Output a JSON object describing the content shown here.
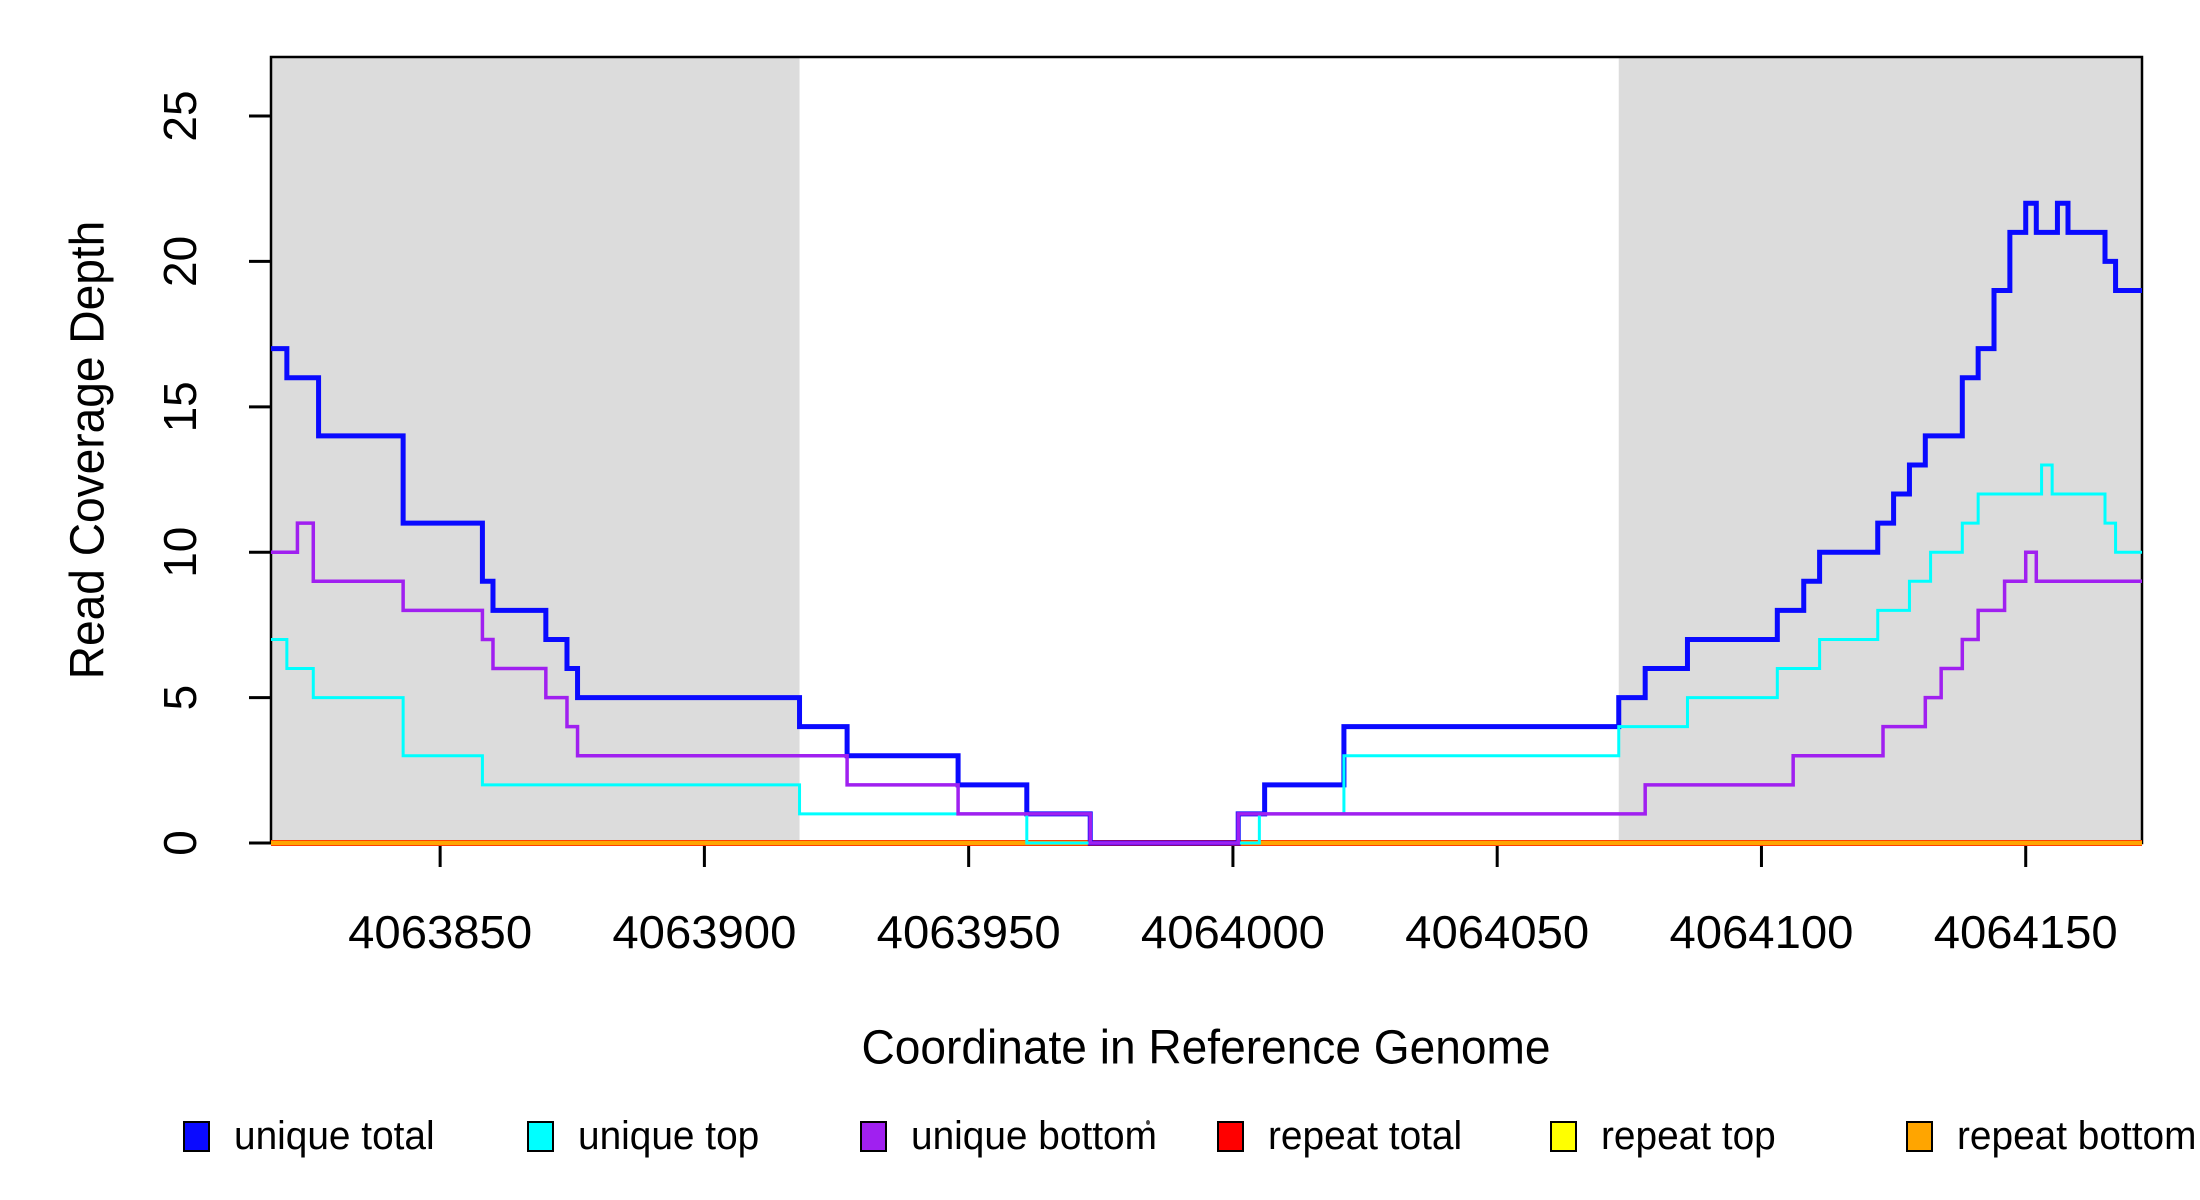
{
  "chart_data": {
    "type": "line",
    "subtype": "step",
    "title": "",
    "xlabel": "Coordinate in Reference Genome",
    "ylabel": "Read Coverage Depth",
    "xlim": [
      4063818,
      4064172
    ],
    "ylim": [
      0,
      27.03
    ],
    "x_ticks": [
      4063850,
      4063900,
      4063950,
      4064000,
      4064050,
      4064100,
      4064150
    ],
    "y_ticks": [
      0,
      5,
      10,
      15,
      20,
      25
    ],
    "grid": false,
    "background_color": "#ffffff",
    "plot_border_color": "#000000",
    "shade_color": "#DCDCDC",
    "shaded_regions": [
      {
        "from": 4063818,
        "to": 4063918
      },
      {
        "from": 4064073,
        "to": 4064172
      }
    ],
    "legend_position": "bottom",
    "legend": [
      {
        "label": "unique total",
        "color": "#0A0AFF"
      },
      {
        "label": "unique top",
        "color": "#00FFFF"
      },
      {
        "label": "unique bottom",
        "color": "#A020F0"
      },
      {
        "label": "repeat total",
        "color": "#FF0000"
      },
      {
        "label": "repeat top",
        "color": "#FFFF00"
      },
      {
        "label": "repeat bottom",
        "color": "#FFA500"
      }
    ],
    "draw_order": [
      "repeat total",
      "repeat top",
      "repeat bottom",
      "unique total",
      "unique top",
      "unique bottom"
    ],
    "series": [
      {
        "name": "unique total",
        "color": "#0A0AFF",
        "line_width": 5,
        "steps": [
          [
            4063818,
            17
          ],
          [
            4063821,
            16
          ],
          [
            4063827,
            14
          ],
          [
            4063843,
            11
          ],
          [
            4063858,
            9
          ],
          [
            4063860,
            8
          ],
          [
            4063870,
            7
          ],
          [
            4063874,
            6
          ],
          [
            4063876,
            5
          ],
          [
            4063918,
            4
          ],
          [
            4063927,
            3
          ],
          [
            4063948,
            2
          ],
          [
            4063961,
            1
          ],
          [
            4063973,
            0
          ],
          [
            4064001,
            1
          ],
          [
            4064006,
            2
          ],
          [
            4064021,
            4
          ],
          [
            4064073,
            5
          ],
          [
            4064078,
            6
          ],
          [
            4064086,
            7
          ],
          [
            4064103,
            8
          ],
          [
            4064108,
            9
          ],
          [
            4064111,
            10
          ],
          [
            4064122,
            11
          ],
          [
            4064125,
            12
          ],
          [
            4064128,
            13
          ],
          [
            4064131,
            14
          ],
          [
            4064138,
            16
          ],
          [
            4064141,
            17
          ],
          [
            4064144,
            19
          ],
          [
            4064147,
            21
          ],
          [
            4064150,
            22
          ],
          [
            4064152,
            21
          ],
          [
            4064156,
            22
          ],
          [
            4064158,
            21
          ],
          [
            4064165,
            20
          ],
          [
            4064167,
            19
          ]
        ]
      },
      {
        "name": "unique top",
        "color": "#00FFFF",
        "line_width": 3,
        "steps": [
          [
            4063818,
            7
          ],
          [
            4063821,
            6
          ],
          [
            4063826,
            5
          ],
          [
            4063843,
            3
          ],
          [
            4063858,
            2
          ],
          [
            4063918,
            1
          ],
          [
            4063961,
            0
          ],
          [
            4064005,
            1
          ],
          [
            4064021,
            3
          ],
          [
            4064073,
            4
          ],
          [
            4064086,
            5
          ],
          [
            4064103,
            6
          ],
          [
            4064111,
            7
          ],
          [
            4064122,
            8
          ],
          [
            4064128,
            9
          ],
          [
            4064132,
            10
          ],
          [
            4064138,
            11
          ],
          [
            4064141,
            12
          ],
          [
            4064153,
            13
          ],
          [
            4064155,
            12
          ],
          [
            4064165,
            11
          ],
          [
            4064167,
            10
          ]
        ]
      },
      {
        "name": "unique bottom",
        "color": "#A020F0",
        "line_width": 3.5,
        "steps": [
          [
            4063818,
            10
          ],
          [
            4063823,
            11
          ],
          [
            4063826,
            9
          ],
          [
            4063843,
            8
          ],
          [
            4063858,
            7
          ],
          [
            4063860,
            6
          ],
          [
            4063870,
            5
          ],
          [
            4063874,
            4
          ],
          [
            4063876,
            3
          ],
          [
            4063927,
            2
          ],
          [
            4063948,
            1
          ],
          [
            4063973,
            0
          ],
          [
            4064001,
            1
          ],
          [
            4064078,
            2
          ],
          [
            4064106,
            3
          ],
          [
            4064123,
            4
          ],
          [
            4064131,
            5
          ],
          [
            4064134,
            6
          ],
          [
            4064138,
            7
          ],
          [
            4064141,
            8
          ],
          [
            4064146,
            9
          ],
          [
            4064150,
            10
          ],
          [
            4064152,
            9
          ]
        ]
      },
      {
        "name": "repeat total",
        "color": "#FF0000",
        "line_width": 6,
        "steps": [
          [
            4063818,
            0
          ]
        ]
      },
      {
        "name": "repeat top",
        "color": "#FFFF00",
        "line_width": 4.5,
        "steps": [
          [
            4063818,
            0
          ]
        ]
      },
      {
        "name": "repeat bottom",
        "color": "#FFA500",
        "line_width": 4,
        "steps": [
          [
            4063818,
            0
          ]
        ]
      }
    ]
  }
}
